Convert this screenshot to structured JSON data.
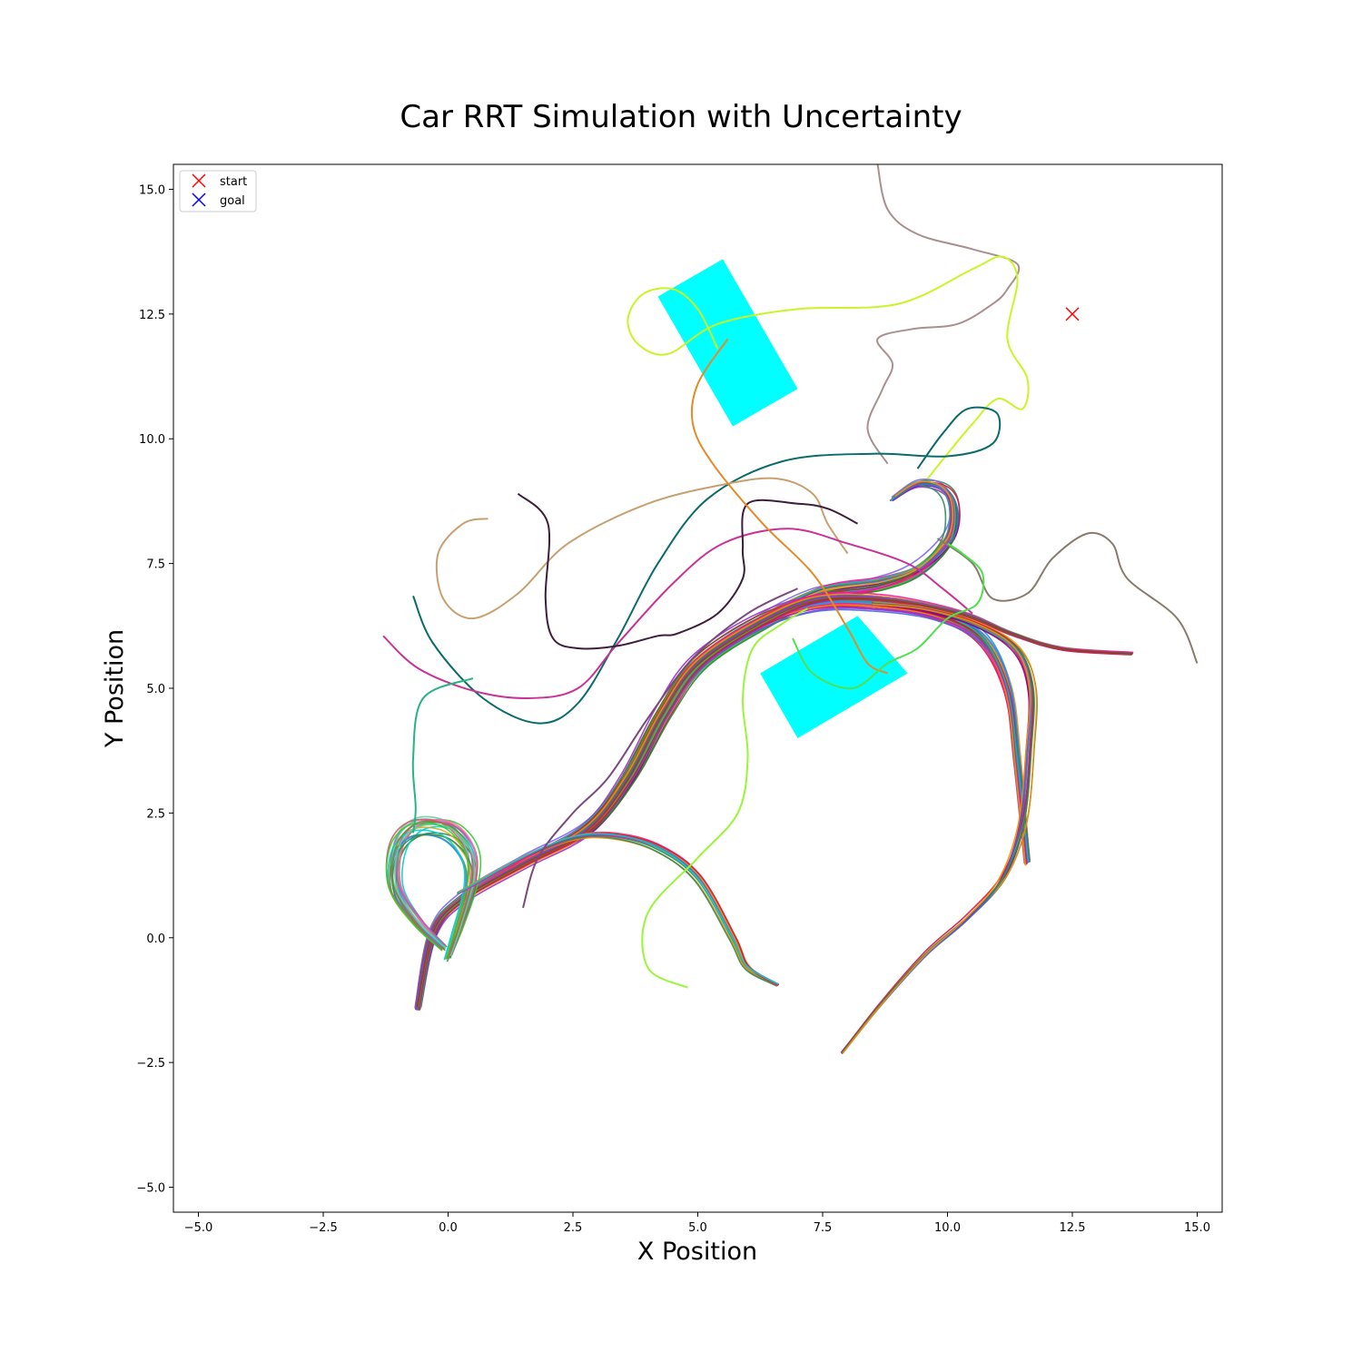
{
  "chart_data": {
    "type": "line",
    "title": "Car RRT Simulation with Uncertainty",
    "xlabel": "X Position",
    "ylabel": "Y Position",
    "xlim": [
      -5.5,
      15.5
    ],
    "ylim": [
      -5.5,
      15.5
    ],
    "xticks": [
      -5.0,
      -2.5,
      0.0,
      2.5,
      5.0,
      7.5,
      10.0,
      12.5,
      15.0
    ],
    "yticks": [
      -5.0,
      -2.5,
      0.0,
      2.5,
      5.0,
      7.5,
      10.0,
      12.5,
      15.0
    ],
    "grid": false,
    "legend": {
      "placement": "top-left",
      "entries": [
        {
          "label": "start",
          "marker": "x",
          "color": "#ff0000"
        },
        {
          "label": "goal",
          "marker": "x",
          "color": "#0000ff"
        }
      ]
    },
    "start": {
      "x": 12.5,
      "y": 12.5
    },
    "obstacles": [
      {
        "color": "#00ffff",
        "corners": [
          [
            4.2,
            12.85
          ],
          [
            5.5,
            13.6
          ],
          [
            7.0,
            11.0
          ],
          [
            5.7,
            10.25
          ]
        ]
      },
      {
        "color": "#00ffff",
        "corners": [
          [
            6.25,
            5.3
          ],
          [
            8.2,
            6.45
          ],
          [
            9.2,
            5.3
          ],
          [
            7.0,
            4.0
          ]
        ]
      }
    ],
    "bundles": [
      {
        "count": 30,
        "colors": [
          "#c21e56",
          "#2e8b57",
          "#7b68ee",
          "#ff8c00",
          "#20b2aa",
          "#8b4513",
          "#ff1493",
          "#228b22",
          "#4169e1",
          "#daa520",
          "#9932cc",
          "#00ced1",
          "#dc143c",
          "#6b8e23",
          "#ff69b4",
          "#483d8b",
          "#32cd32",
          "#b8860b",
          "#1e90ff",
          "#8b008b"
        ],
        "spread": 0.16,
        "points": [
          [
            -0.6,
            -1.4
          ],
          [
            -0.3,
            0.1
          ],
          [
            0.3,
            0.8
          ],
          [
            1.5,
            1.5
          ],
          [
            2.8,
            2.2
          ],
          [
            3.6,
            3.2
          ],
          [
            4.3,
            4.5
          ],
          [
            5.0,
            5.5
          ],
          [
            6.2,
            6.3
          ],
          [
            7.4,
            6.9
          ],
          [
            8.6,
            7.1
          ],
          [
            9.4,
            7.4
          ],
          [
            10.0,
            8.0
          ],
          [
            10.1,
            8.6
          ],
          [
            9.9,
            9.0
          ],
          [
            9.4,
            9.1
          ],
          [
            8.9,
            8.8
          ]
        ]
      },
      {
        "count": 26,
        "colors": [
          "#2e8b57",
          "#dc143c",
          "#4169e1",
          "#ff8c00",
          "#9932cc",
          "#20b2aa",
          "#8b4513",
          "#ff1493",
          "#6b8e23",
          "#1e90ff"
        ],
        "spread": 0.14,
        "points": [
          [
            -0.6,
            -1.4
          ],
          [
            -0.3,
            0.1
          ],
          [
            0.3,
            0.8
          ],
          [
            1.5,
            1.5
          ],
          [
            2.8,
            2.2
          ],
          [
            3.6,
            3.2
          ],
          [
            4.3,
            4.5
          ],
          [
            5.0,
            5.5
          ],
          [
            6.2,
            6.3
          ],
          [
            7.4,
            6.7
          ],
          [
            8.6,
            6.7
          ],
          [
            9.8,
            6.5
          ],
          [
            10.7,
            6.0
          ],
          [
            11.2,
            5.0
          ],
          [
            11.4,
            3.5
          ],
          [
            11.6,
            1.5
          ]
        ]
      },
      {
        "count": 18,
        "colors": [
          "#c21e56",
          "#8b4513",
          "#ff1493",
          "#2e8b57",
          "#ff8c00",
          "#4169e1",
          "#32cd32",
          "#9932cc"
        ],
        "spread": 0.07,
        "points": [
          [
            -0.6,
            -1.4
          ],
          [
            -0.3,
            0.1
          ],
          [
            0.3,
            0.8
          ],
          [
            1.5,
            1.5
          ],
          [
            2.8,
            2.2
          ],
          [
            3.6,
            3.2
          ],
          [
            4.3,
            4.5
          ],
          [
            5.0,
            5.5
          ],
          [
            6.2,
            6.3
          ],
          [
            7.4,
            6.8
          ],
          [
            8.8,
            6.8
          ],
          [
            10.3,
            6.5
          ],
          [
            11.3,
            6.1
          ],
          [
            12.3,
            5.8
          ],
          [
            13.7,
            5.7
          ]
        ]
      },
      {
        "count": 22,
        "colors": [
          "#66cdaa",
          "#32cd32",
          "#ff69b4",
          "#1e90ff",
          "#daa520",
          "#2e8b57",
          "#ba55d3",
          "#00ced1",
          "#6b8e23",
          "#cd5c5c"
        ],
        "spread": 0.18,
        "points": [
          [
            -0.1,
            -0.2
          ],
          [
            -0.6,
            0.3
          ],
          [
            -1.05,
            1.0
          ],
          [
            -1.0,
            1.8
          ],
          [
            -0.6,
            2.2
          ],
          [
            0.0,
            2.15
          ],
          [
            0.4,
            1.7
          ],
          [
            0.45,
            1.1
          ],
          [
            0.2,
            0.2
          ],
          [
            0.0,
            -0.4
          ]
        ]
      },
      {
        "count": 14,
        "colors": [
          "#ff8c00",
          "#ff1493",
          "#2e8b57",
          "#4169e1",
          "#daa520",
          "#dc143c",
          "#00ced1"
        ],
        "spread": 0.06,
        "points": [
          [
            0.2,
            0.9
          ],
          [
            1.5,
            1.6
          ],
          [
            2.5,
            2.0
          ],
          [
            3.3,
            2.05
          ],
          [
            4.2,
            1.8
          ],
          [
            5.0,
            1.2
          ],
          [
            5.7,
            0.0
          ],
          [
            6.0,
            -0.6
          ],
          [
            6.6,
            -0.95
          ]
        ]
      },
      {
        "count": 12,
        "colors": [
          "#3cb371",
          "#8b008b",
          "#dc143c",
          "#4169e1",
          "#2e8b57",
          "#ff8c00"
        ],
        "spread": 0.08,
        "points": [
          [
            7.9,
            -2.3
          ],
          [
            8.7,
            -1.3
          ],
          [
            9.6,
            -0.3
          ],
          [
            10.4,
            0.4
          ],
          [
            11.1,
            1.2
          ],
          [
            11.5,
            2.3
          ],
          [
            11.65,
            3.8
          ],
          [
            11.7,
            5.0
          ],
          [
            11.4,
            5.8
          ],
          [
            10.6,
            6.3
          ],
          [
            9.5,
            6.6
          ],
          [
            8.5,
            6.7
          ]
        ]
      }
    ],
    "wanderers": [
      {
        "color": "#aa8f8f",
        "points": [
          [
            8.6,
            15.5
          ],
          [
            8.8,
            14.6
          ],
          [
            9.4,
            14.1
          ],
          [
            10.5,
            13.8
          ],
          [
            11.4,
            13.5
          ],
          [
            11.2,
            13.0
          ],
          [
            10.9,
            12.7
          ],
          [
            10.2,
            12.3
          ],
          [
            9.3,
            12.2
          ],
          [
            8.6,
            12.0
          ],
          [
            8.9,
            11.5
          ],
          [
            8.7,
            11.0
          ],
          [
            8.4,
            10.2
          ],
          [
            8.8,
            9.5
          ]
        ]
      },
      {
        "color": "#c8f526",
        "points": [
          [
            5.4,
            11.8
          ],
          [
            5.0,
            12.6
          ],
          [
            4.5,
            13.0
          ],
          [
            3.9,
            12.9
          ],
          [
            3.6,
            12.4
          ],
          [
            3.8,
            11.9
          ],
          [
            4.4,
            11.7
          ],
          [
            5.4,
            12.3
          ],
          [
            7.0,
            12.6
          ],
          [
            9.0,
            12.7
          ],
          [
            10.5,
            13.4
          ],
          [
            11.1,
            13.65
          ],
          [
            11.4,
            13.2
          ],
          [
            11.2,
            12.0
          ],
          [
            11.6,
            11.2
          ],
          [
            11.5,
            10.6
          ],
          [
            11.0,
            10.8
          ],
          [
            10.5,
            10.3
          ],
          [
            10.0,
            9.7
          ],
          [
            9.6,
            9.2
          ]
        ]
      },
      {
        "color": "#0b6b6b",
        "points": [
          [
            -0.7,
            6.85
          ],
          [
            -0.3,
            5.9
          ],
          [
            0.7,
            4.8
          ],
          [
            1.8,
            4.3
          ],
          [
            2.6,
            4.7
          ],
          [
            3.4,
            6.0
          ],
          [
            4.2,
            7.5
          ],
          [
            5.2,
            8.8
          ],
          [
            6.7,
            9.55
          ],
          [
            8.5,
            9.7
          ],
          [
            10.0,
            9.65
          ],
          [
            10.9,
            9.9
          ],
          [
            11.0,
            10.5
          ],
          [
            10.4,
            10.6
          ],
          [
            9.9,
            10.1
          ],
          [
            9.4,
            9.4
          ]
        ]
      },
      {
        "color": "#c8a070",
        "points": [
          [
            0.8,
            8.4
          ],
          [
            0.3,
            8.3
          ],
          [
            -0.2,
            7.7
          ],
          [
            -0.1,
            6.8
          ],
          [
            0.5,
            6.4
          ],
          [
            1.4,
            6.9
          ],
          [
            2.4,
            7.9
          ],
          [
            4.0,
            8.7
          ],
          [
            5.6,
            9.1
          ],
          [
            6.6,
            9.2
          ],
          [
            7.3,
            8.9
          ],
          [
            7.6,
            8.3
          ],
          [
            8.0,
            7.7
          ]
        ]
      },
      {
        "color": "#c83296",
        "points": [
          [
            -1.3,
            6.05
          ],
          [
            -0.6,
            5.4
          ],
          [
            0.5,
            4.95
          ],
          [
            1.6,
            4.8
          ],
          [
            2.6,
            5.0
          ],
          [
            3.4,
            5.9
          ],
          [
            4.5,
            7.1
          ],
          [
            5.5,
            7.9
          ],
          [
            6.8,
            8.2
          ],
          [
            8.0,
            7.9
          ],
          [
            9.2,
            7.5
          ],
          [
            9.9,
            7.0
          ],
          [
            10.5,
            6.5
          ]
        ]
      },
      {
        "color": "#3c1e3c",
        "points": [
          [
            1.4,
            8.9
          ],
          [
            2.0,
            8.3
          ],
          [
            1.95,
            6.8
          ],
          [
            2.1,
            6.0
          ],
          [
            2.6,
            5.8
          ],
          [
            3.4,
            5.85
          ],
          [
            4.2,
            6.05
          ],
          [
            4.6,
            6.1
          ],
          [
            5.4,
            6.5
          ],
          [
            5.9,
            7.2
          ],
          [
            5.9,
            7.8
          ],
          [
            6.0,
            8.7
          ],
          [
            7.0,
            8.7
          ],
          [
            7.6,
            8.6
          ],
          [
            8.2,
            8.3
          ]
        ]
      },
      {
        "color": "#e48a28",
        "points": [
          [
            5.6,
            12.0
          ],
          [
            5.0,
            11.1
          ],
          [
            4.9,
            10.3
          ],
          [
            5.3,
            9.5
          ],
          [
            6.3,
            8.3
          ],
          [
            7.3,
            7.3
          ],
          [
            8.0,
            6.2
          ],
          [
            8.4,
            5.5
          ],
          [
            8.8,
            5.3
          ]
        ]
      },
      {
        "color": "#8a7a6a",
        "points": [
          [
            15.0,
            5.5
          ],
          [
            14.6,
            6.4
          ],
          [
            13.6,
            7.2
          ],
          [
            13.3,
            7.9
          ],
          [
            12.8,
            8.1
          ],
          [
            12.1,
            7.6
          ],
          [
            11.6,
            6.9
          ],
          [
            10.9,
            6.8
          ],
          [
            10.5,
            7.5
          ],
          [
            9.8,
            8.0
          ]
        ]
      },
      {
        "color": "#26b482",
        "points": [
          [
            0.5,
            5.2
          ],
          [
            -0.5,
            4.8
          ],
          [
            -0.7,
            3.6
          ],
          [
            -0.65,
            2.6
          ],
          [
            -0.7,
            2.1
          ]
        ]
      },
      {
        "color": "#9af53a",
        "points": [
          [
            4.8,
            -1.0
          ],
          [
            4.0,
            -0.6
          ],
          [
            4.0,
            0.5
          ],
          [
            5.0,
            1.6
          ],
          [
            5.8,
            2.5
          ],
          [
            6.0,
            3.6
          ],
          [
            5.9,
            4.8
          ],
          [
            6.1,
            5.8
          ],
          [
            6.7,
            6.3
          ],
          [
            7.2,
            6.6
          ]
        ]
      },
      {
        "color": "#4fe04f",
        "points": [
          [
            6.9,
            6.0
          ],
          [
            7.3,
            5.3
          ],
          [
            8.1,
            5.0
          ],
          [
            8.8,
            5.5
          ],
          [
            9.4,
            5.8
          ],
          [
            10.0,
            6.4
          ],
          [
            10.6,
            6.7
          ],
          [
            10.7,
            7.3
          ],
          [
            10.3,
            7.7
          ],
          [
            10.0,
            7.9
          ]
        ]
      },
      {
        "color": "#7a4a7a",
        "points": [
          [
            1.5,
            0.6
          ],
          [
            1.8,
            1.6
          ],
          [
            2.5,
            2.5
          ],
          [
            3.2,
            3.2
          ],
          [
            4.0,
            4.4
          ],
          [
            4.9,
            5.6
          ],
          [
            6.0,
            6.5
          ],
          [
            7.0,
            7.0
          ]
        ]
      }
    ]
  }
}
